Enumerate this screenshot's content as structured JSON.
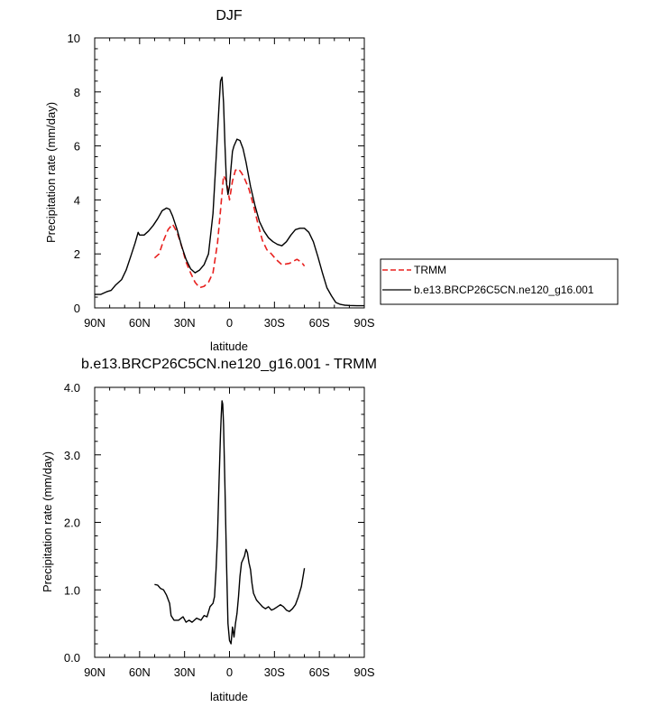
{
  "chart_data": [
    {
      "type": "line",
      "title": "DJF",
      "xlabel": "latitude",
      "ylabel": "Precipitation rate (mm/day)",
      "xlim": [
        90,
        -90
      ],
      "ylim": [
        0,
        10
      ],
      "x_ticks": [
        {
          "value": 90,
          "label": "90N"
        },
        {
          "value": 60,
          "label": "60N"
        },
        {
          "value": 30,
          "label": "30N"
        },
        {
          "value": 0,
          "label": "0"
        },
        {
          "value": -30,
          "label": "30S"
        },
        {
          "value": -60,
          "label": "60S"
        },
        {
          "value": -90,
          "label": "90S"
        }
      ],
      "y_ticks": [
        {
          "value": 0,
          "label": "0"
        },
        {
          "value": 2,
          "label": "2"
        },
        {
          "value": 4,
          "label": "4"
        },
        {
          "value": 6,
          "label": "6"
        },
        {
          "value": 8,
          "label": "8"
        },
        {
          "value": 10,
          "label": "10"
        }
      ],
      "grid": false,
      "legend_position": "outside-right",
      "series": [
        {
          "name": "TRMM",
          "color": "#e8201e",
          "dash": "dashed",
          "x": [
            50,
            47,
            44,
            41,
            38,
            35,
            32,
            29,
            26,
            23,
            20,
            17,
            14,
            11,
            8,
            6,
            4,
            2,
            0,
            -2,
            -4,
            -6,
            -8,
            -10,
            -13,
            -16,
            -19,
            -22,
            -25,
            -28,
            -31,
            -35,
            -40,
            -45,
            -48,
            -50
          ],
          "y": [
            1.85,
            2.0,
            2.5,
            2.9,
            3.1,
            2.8,
            2.3,
            1.7,
            1.3,
            0.95,
            0.75,
            0.8,
            0.95,
            1.3,
            2.4,
            3.6,
            4.9,
            4.7,
            4.0,
            4.7,
            5.1,
            5.15,
            5.0,
            4.8,
            4.4,
            3.8,
            3.1,
            2.5,
            2.15,
            2.0,
            1.8,
            1.6,
            1.65,
            1.8,
            1.7,
            1.55
          ]
        },
        {
          "name": "b.e13.BRCP26C5CN.ne120_g16.001",
          "color": "#000000",
          "dash": "solid",
          "x": [
            90,
            86,
            82,
            79,
            76,
            72,
            69,
            66,
            63,
            61,
            60,
            57,
            54,
            51,
            48,
            45,
            42,
            40,
            38,
            35,
            32,
            29,
            26,
            23,
            20,
            17,
            14,
            11,
            9,
            7,
            6,
            5,
            4,
            3,
            2,
            1,
            0,
            -1,
            -2,
            -3,
            -5,
            -7,
            -9,
            -11,
            -14,
            -17,
            -20,
            -23,
            -26,
            -29,
            -32,
            -35,
            -38,
            -41,
            -44,
            -47,
            -50,
            -53,
            -56,
            -59,
            -62,
            -65,
            -68,
            -71,
            -74,
            -77,
            -80,
            -85,
            -90
          ],
          "y": [
            0.5,
            0.5,
            0.6,
            0.65,
            0.85,
            1.05,
            1.4,
            1.9,
            2.4,
            2.8,
            2.7,
            2.7,
            2.85,
            3.05,
            3.3,
            3.6,
            3.7,
            3.65,
            3.4,
            2.9,
            2.3,
            1.8,
            1.45,
            1.3,
            1.4,
            1.6,
            2.0,
            3.5,
            5.5,
            7.5,
            8.4,
            8.55,
            7.6,
            6.0,
            4.6,
            4.2,
            4.5,
            5.2,
            5.8,
            6.0,
            6.25,
            6.2,
            5.9,
            5.4,
            4.5,
            3.8,
            3.2,
            2.85,
            2.6,
            2.45,
            2.35,
            2.3,
            2.45,
            2.7,
            2.9,
            2.95,
            2.95,
            2.8,
            2.45,
            1.9,
            1.3,
            0.75,
            0.45,
            0.2,
            0.13,
            0.1,
            0.09,
            0.08,
            0.08
          ]
        }
      ]
    },
    {
      "type": "line",
      "title": "b.e13.BRCP26C5CN.ne120_g16.001 - TRMM",
      "xlabel": "latitude",
      "ylabel": "Precipitation rate (mm/day)",
      "xlim": [
        90,
        -90
      ],
      "ylim": [
        0,
        4
      ],
      "x_ticks": [
        {
          "value": 90,
          "label": "90N"
        },
        {
          "value": 60,
          "label": "60N"
        },
        {
          "value": 30,
          "label": "30N"
        },
        {
          "value": 0,
          "label": "0"
        },
        {
          "value": -30,
          "label": "30S"
        },
        {
          "value": -60,
          "label": "60S"
        },
        {
          "value": -90,
          "label": "90S"
        }
      ],
      "y_ticks": [
        {
          "value": 0,
          "label": "0.0"
        },
        {
          "value": 1,
          "label": "1.0"
        },
        {
          "value": 2,
          "label": "2.0"
        },
        {
          "value": 3,
          "label": "3.0"
        },
        {
          "value": 4,
          "label": "4.0"
        }
      ],
      "grid": false,
      "series": [
        {
          "color": "#000000",
          "dash": "solid",
          "x": [
            50,
            48,
            46,
            44,
            42,
            40,
            39,
            37,
            34,
            31,
            29,
            27,
            25,
            22,
            19,
            17,
            15,
            13,
            11,
            10,
            9,
            8,
            7,
            6,
            5.5,
            5,
            4.5,
            4,
            3,
            2,
            1,
            0,
            -1,
            -2,
            -3,
            -4,
            -5,
            -6,
            -7,
            -8,
            -9,
            -10,
            -11,
            -12,
            -13,
            -14,
            -15,
            -16,
            -18,
            -20,
            -22,
            -24,
            -26,
            -28,
            -30,
            -32,
            -34,
            -36,
            -38,
            -40,
            -42,
            -44,
            -46,
            -48,
            -50
          ],
          "y": [
            1.08,
            1.07,
            1.02,
            1.0,
            0.92,
            0.8,
            0.62,
            0.55,
            0.55,
            0.6,
            0.52,
            0.55,
            0.52,
            0.58,
            0.55,
            0.62,
            0.6,
            0.75,
            0.8,
            0.9,
            1.3,
            1.8,
            2.6,
            3.3,
            3.6,
            3.8,
            3.75,
            3.45,
            2.5,
            1.4,
            0.5,
            0.25,
            0.2,
            0.45,
            0.3,
            0.5,
            0.65,
            0.9,
            1.2,
            1.4,
            1.45,
            1.5,
            1.6,
            1.55,
            1.4,
            1.3,
            1.1,
            0.95,
            0.85,
            0.8,
            0.75,
            0.72,
            0.75,
            0.7,
            0.72,
            0.75,
            0.78,
            0.75,
            0.7,
            0.68,
            0.72,
            0.78,
            0.9,
            1.05,
            1.32
          ]
        }
      ]
    }
  ]
}
